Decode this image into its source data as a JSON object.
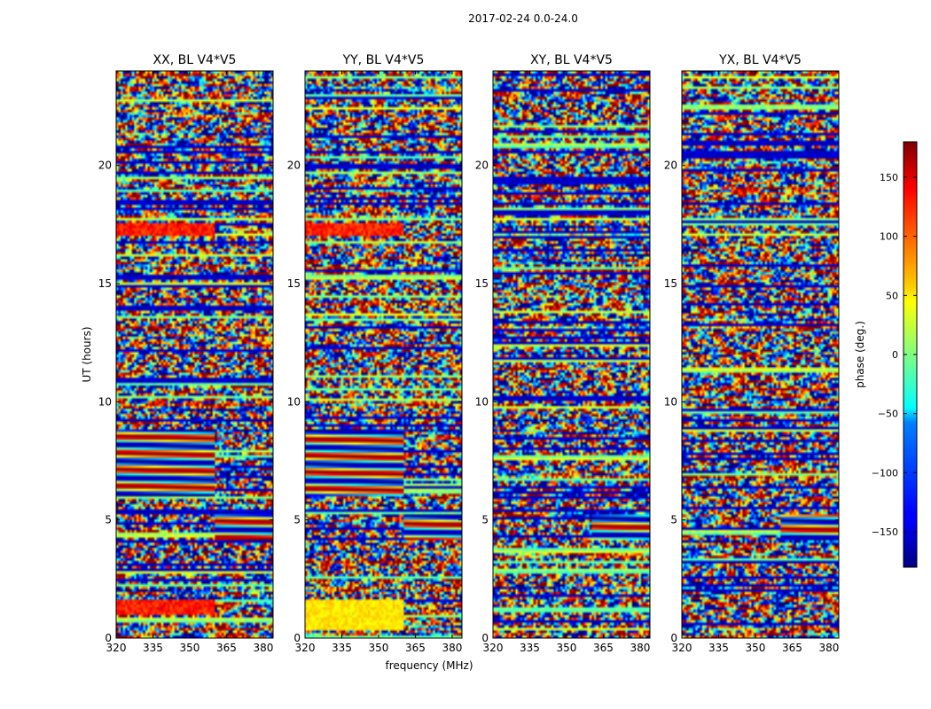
{
  "chart_data": {
    "type": "heatmap",
    "suptitle": "2017-02-24 0.0-24.0",
    "panels": [
      {
        "title": "XX, BL V4*V5",
        "pol": "XX"
      },
      {
        "title": "YY, BL V4*V5",
        "pol": "YY"
      },
      {
        "title": "XY, BL V4*V5",
        "pol": "XY"
      },
      {
        "title": "YX, BL V4*V5",
        "pol": "YX"
      }
    ],
    "xlabel": "frequency (MHz)",
    "ylabel": "UT (hours)",
    "xlim": [
      320,
      384
    ],
    "ylim": [
      0,
      24
    ],
    "xticks": [
      320,
      335,
      350,
      365,
      380
    ],
    "yticks": [
      0,
      5,
      10,
      15,
      20
    ],
    "colorbar": {
      "label": "phase (deg.)",
      "range": [
        -180,
        180
      ],
      "ticks": [
        -150,
        -100,
        -50,
        0,
        50,
        100,
        150
      ],
      "tick_labels": [
        "−150",
        "−100",
        "−50",
        "0",
        "50",
        "100",
        "150"
      ],
      "colormap": "jet"
    },
    "coherent_regions": [
      {
        "ut": [
          6.0,
          8.8
        ],
        "freq": [
          320,
          360
        ],
        "pols": [
          "XX",
          "YY"
        ],
        "description": "smooth phase bands"
      },
      {
        "ut": [
          1.0,
          1.6
        ],
        "freq": [
          320,
          360
        ],
        "pols": [
          "XX"
        ],
        "description": "red phase patch"
      },
      {
        "ut": [
          0.3,
          1.6
        ],
        "freq": [
          320,
          360
        ],
        "pols": [
          "YY"
        ],
        "description": "yellow phase patch"
      },
      {
        "ut": [
          17.0,
          17.6
        ],
        "freq": [
          320,
          360
        ],
        "pols": [
          "XX",
          "YY"
        ],
        "description": "red/yellow phase patch"
      },
      {
        "ut": [
          4.2,
          5.2
        ],
        "freq": [
          360,
          384
        ],
        "pols": [
          "XX",
          "YY",
          "XY",
          "YX"
        ],
        "description": "smooth phase feature"
      }
    ],
    "grid": false
  }
}
